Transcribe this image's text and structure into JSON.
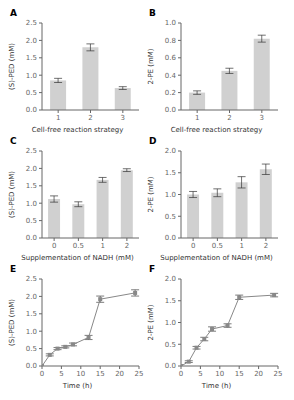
{
  "chart_data": [
    {
      "type": "bar",
      "title": "A",
      "categories": [
        "1",
        "2",
        "3"
      ],
      "values": [
        0.85,
        1.8,
        0.63
      ],
      "yerr": [
        0.06,
        0.1,
        0.04
      ],
      "xlabel": "Cell-free reaction strategy",
      "ylabel": "(S)-PED (mM)",
      "ylim": [
        0,
        2.5
      ],
      "yticks": [
        {
          "value": 0,
          "label": "0.0"
        },
        0.5,
        {
          "value": 1,
          "label": "1.0"
        },
        1.5,
        {
          "value": 2,
          "label": "2.0"
        },
        2.5
      ],
      "color": "#d0d0d0",
      "grid": false
    },
    {
      "type": "bar",
      "title": "B",
      "categories": [
        "1",
        "2",
        "3"
      ],
      "values": [
        0.2,
        0.45,
        0.82
      ],
      "yerr": [
        0.02,
        0.03,
        0.04
      ],
      "xlabel": "Cell-free reaction strategy",
      "ylabel": "2-PE (mM)",
      "ylim": [
        0,
        1.0
      ],
      "yticks": [
        {
          "value": 0,
          "label": "0.0"
        },
        0.2,
        0.4,
        0.6,
        0.8,
        {
          "value": 1,
          "label": "1.0"
        }
      ],
      "color": "#d0d0d0",
      "grid": false
    },
    {
      "type": "bar",
      "title": "C",
      "categories": [
        "0",
        "0.5",
        "1",
        "2"
      ],
      "values": [
        1.12,
        0.97,
        1.67,
        1.95
      ],
      "yerr": [
        0.09,
        0.07,
        0.07,
        0.04
      ],
      "xlabel": "Supplementation of NADH (mM)",
      "ylabel": "(S)-PED (mM)",
      "ylim": [
        0,
        2.5
      ],
      "yticks": [
        {
          "value": 0,
          "label": "0.0"
        },
        0.5,
        {
          "value": 1,
          "label": "1.0"
        },
        1.5,
        {
          "value": 2,
          "label": "2.0"
        },
        2.5
      ],
      "color": "#d0d0d0",
      "grid": false
    },
    {
      "type": "bar",
      "title": "D",
      "categories": [
        "0",
        "0.5",
        "1",
        "2"
      ],
      "values": [
        1.0,
        1.04,
        1.28,
        1.58
      ],
      "yerr": [
        0.07,
        0.09,
        0.13,
        0.12
      ],
      "xlabel": "Supplementation of NADH (mM)",
      "ylabel": "2-PE (mM)",
      "ylim": [
        0,
        2.0
      ],
      "yticks": [
        {
          "value": 0,
          "label": "0.0"
        },
        0.5,
        {
          "value": 1,
          "label": "1.0"
        },
        1.5,
        {
          "value": 2,
          "label": "2.0"
        }
      ],
      "color": "#d0d0d0",
      "grid": false
    },
    {
      "type": "line",
      "title": "E",
      "x": [
        0,
        2,
        4,
        6,
        8,
        12,
        15,
        24
      ],
      "values": [
        0.0,
        0.32,
        0.5,
        0.55,
        0.62,
        0.82,
        1.92,
        2.1
      ],
      "yerr": [
        0.0,
        0.03,
        0.03,
        0.03,
        0.04,
        0.06,
        0.09,
        0.09
      ],
      "xlabel": "Time (h)",
      "ylabel": "(S)-PED (mM)",
      "xlim": [
        0,
        25
      ],
      "xticks": [
        0,
        5,
        10,
        15,
        20,
        25
      ],
      "ylim": [
        0,
        2.5
      ],
      "yticks": [
        {
          "value": 0,
          "label": "0.0"
        },
        0.5,
        {
          "value": 1,
          "label": "1.0"
        },
        1.5,
        {
          "value": 2,
          "label": "2.0"
        },
        2.5
      ],
      "color": "#888888",
      "marker": "square",
      "grid": false
    },
    {
      "type": "line",
      "title": "F",
      "x": [
        0,
        2,
        4,
        6,
        8,
        12,
        15,
        24
      ],
      "values": [
        0.0,
        0.1,
        0.42,
        0.62,
        0.85,
        0.93,
        1.58,
        1.63
      ],
      "yerr": [
        0.0,
        0.02,
        0.03,
        0.04,
        0.05,
        0.04,
        0.05,
        0.04
      ],
      "xlabel": "Time (h)",
      "ylabel": "2-PE (mM)",
      "xlim": [
        0,
        25
      ],
      "xticks": [
        0,
        5,
        10,
        15,
        20,
        25
      ],
      "ylim": [
        0,
        2.0
      ],
      "yticks": [
        {
          "value": 0,
          "label": "0.0"
        },
        0.5,
        {
          "value": 1,
          "label": "1.0"
        },
        1.5,
        {
          "value": 2,
          "label": "2.0"
        }
      ],
      "color": "#888888",
      "marker": "square",
      "grid": false
    }
  ]
}
